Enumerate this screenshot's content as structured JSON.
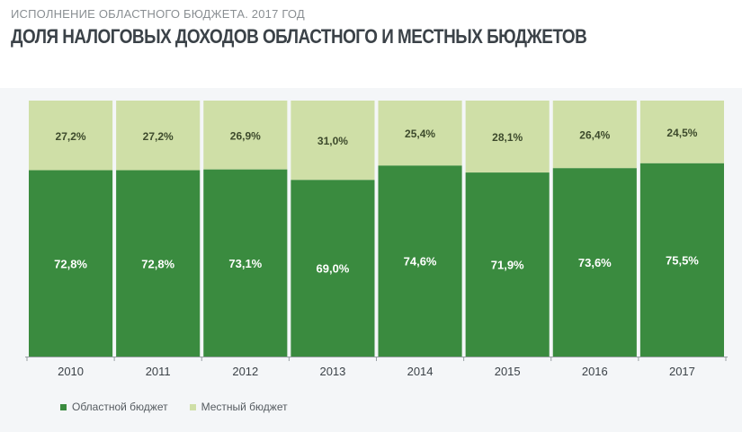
{
  "header": {
    "supertitle": "ИСПОЛНЕНИЕ ОБЛАСТНОГО БЮДЖЕТА. 2017 ГОД",
    "title": "ДОЛЯ НАЛОГОВЫХ ДОХОДОВ ОБЛАСТНОГО И МЕСТНЫХ БЮДЖЕТОВ"
  },
  "colors": {
    "regional": "#3a8b3f",
    "local": "#cfdfa7",
    "background": "#f4f6f8"
  },
  "legend": {
    "regional_label": "Областной бюджет",
    "local_label": "Местный бюджет",
    "placement": "bottom-left"
  },
  "chart_data": {
    "type": "bar",
    "stacked": true,
    "categories": [
      "2010",
      "2011",
      "2012",
      "2013",
      "2014",
      "2015",
      "2016",
      "2017"
    ],
    "series": [
      {
        "name": "Областной бюджет",
        "values": [
          72.8,
          72.8,
          73.1,
          69.0,
          74.6,
          71.9,
          73.6,
          75.5
        ],
        "labels": [
          "72,8%",
          "72,8%",
          "73,1%",
          "69,0%",
          "74,6%",
          "71,9%",
          "73,6%",
          "75,5%"
        ]
      },
      {
        "name": "Местный бюджет",
        "values": [
          27.2,
          27.2,
          26.9,
          31.0,
          25.4,
          28.1,
          26.4,
          24.5
        ],
        "labels": [
          "27,2%",
          "27,2%",
          "26,9%",
          "31,0%",
          "25,4%",
          "28,1%",
          "26,4%",
          "24,5%"
        ]
      }
    ],
    "ylim": [
      0,
      100
    ],
    "grid": false,
    "legend_position": "bottom-left"
  }
}
